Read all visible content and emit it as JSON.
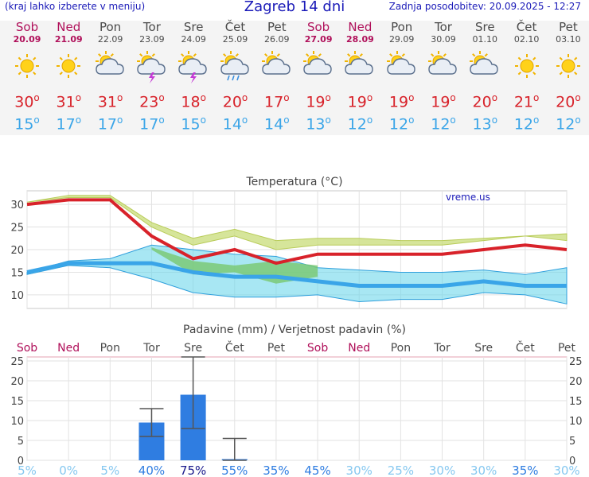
{
  "header": {
    "left_note": "(kraj lahko izberete v meniju)",
    "title": "Zagreb 14 dni",
    "updated": "Zadnja posodobitev: 20.09.2025 - 12:27"
  },
  "colors": {
    "max": "#d8222a",
    "min": "#3aa5e8",
    "weekend": "#b0105a",
    "weekday": "#4a4a4a",
    "bar": "#2f7de1"
  },
  "days": [
    {
      "name": "Sob",
      "date": "20.09",
      "weekend": true,
      "icon": "sun-icon",
      "max": "30",
      "min": "15"
    },
    {
      "name": "Ned",
      "date": "21.09",
      "weekend": true,
      "icon": "sun-icon",
      "max": "31",
      "min": "17"
    },
    {
      "name": "Pon",
      "date": "22.09",
      "weekend": false,
      "icon": "sun-cloud-icon",
      "max": "31",
      "min": "17"
    },
    {
      "name": "Tor",
      "date": "23.09",
      "weekend": false,
      "icon": "sun-storm-icon",
      "max": "23",
      "min": "17"
    },
    {
      "name": "Sre",
      "date": "24.09",
      "weekend": false,
      "icon": "sun-storm-icon",
      "max": "18",
      "min": "15"
    },
    {
      "name": "Čet",
      "date": "25.09",
      "weekend": false,
      "icon": "sun-rain-icon",
      "max": "20",
      "min": "14"
    },
    {
      "name": "Pet",
      "date": "26.09",
      "weekend": false,
      "icon": "sun-cloud-icon",
      "max": "17",
      "min": "14"
    },
    {
      "name": "Sob",
      "date": "27.09",
      "weekend": true,
      "icon": "sun-cloud-icon",
      "max": "19",
      "min": "13"
    },
    {
      "name": "Ned",
      "date": "28.09",
      "weekend": true,
      "icon": "sun-cloud-icon",
      "max": "19",
      "min": "12"
    },
    {
      "name": "Pon",
      "date": "29.09",
      "weekend": false,
      "icon": "sun-cloud-icon",
      "max": "19",
      "min": "12"
    },
    {
      "name": "Tor",
      "date": "30.09",
      "weekend": false,
      "icon": "sun-cloud-icon",
      "max": "19",
      "min": "12"
    },
    {
      "name": "Sre",
      "date": "01.10",
      "weekend": false,
      "icon": "sun-cloud-icon",
      "max": "20",
      "min": "13"
    },
    {
      "name": "Čet",
      "date": "02.10",
      "weekend": false,
      "icon": "sun-icon",
      "max": "21",
      "min": "12"
    },
    {
      "name": "Pet",
      "date": "03.10",
      "weekend": false,
      "icon": "sun-icon",
      "max": "20",
      "min": "12"
    }
  ],
  "chart_data": [
    {
      "type": "line",
      "title": "Temperatura (°C)",
      "watermark": "vreme.us",
      "ylim": [
        7,
        33
      ],
      "yticks": [
        10,
        15,
        20,
        25,
        30
      ],
      "grid": true,
      "x": [
        0,
        1,
        2,
        3,
        4,
        5,
        6,
        7,
        8,
        9,
        10,
        11,
        12,
        13
      ],
      "series": [
        {
          "values": [
            30,
            31,
            31,
            23,
            18,
            20,
            17,
            19,
            19,
            19,
            19,
            20,
            21,
            20
          ],
          "band_low": [
            30.5,
            31.5,
            31.5,
            25,
            21,
            23,
            20,
            21,
            21,
            21,
            21,
            22,
            23,
            22
          ],
          "band_high": [
            30.5,
            32,
            32,
            26,
            22.5,
            24.5,
            22,
            22.5,
            22.5,
            22,
            22,
            22.5,
            23,
            23.5
          ]
        },
        {
          "values": [
            15,
            17,
            17,
            17,
            15,
            14,
            14,
            13,
            12,
            12,
            12,
            13,
            12,
            12
          ],
          "band_low": [
            15,
            17.5,
            18,
            21,
            20,
            19,
            18.5,
            16,
            15.5,
            15,
            15,
            15.5,
            14.5,
            16
          ],
          "band_high": [
            14.5,
            16.5,
            16,
            13.5,
            10.5,
            9.5,
            9.5,
            10,
            8.5,
            9,
            9,
            10.5,
            10,
            8
          ]
        }
      ],
      "green_band": {
        "upper": [
          null,
          null,
          null,
          20.5,
          17.5,
          16.5,
          17.5,
          16.5,
          null
        ],
        "lower": [
          null,
          null,
          null,
          20,
          14.5,
          15,
          12.5,
          14,
          null
        ]
      }
    },
    {
      "type": "bar",
      "title": "Padavine (mm) / Verjetnost padavin (%)",
      "categories": [
        "Sob",
        "Ned",
        "Pon",
        "Tor",
        "Sre",
        "Čet",
        "Pet",
        "Sob",
        "Ned",
        "Pon",
        "Tor",
        "Sre",
        "Čet",
        "Pet"
      ],
      "weekend": [
        true,
        true,
        false,
        false,
        false,
        false,
        false,
        true,
        true,
        false,
        false,
        false,
        false,
        false
      ],
      "values": [
        0,
        0,
        0,
        9.5,
        16.5,
        0.3,
        0,
        0,
        0,
        0,
        0,
        0,
        0,
        0
      ],
      "error_low": [
        null,
        null,
        null,
        6,
        8,
        0,
        null,
        null,
        null,
        null,
        null,
        null,
        null,
        null
      ],
      "error_high": [
        null,
        null,
        null,
        13,
        26,
        5.5,
        null,
        null,
        null,
        null,
        null,
        null,
        null,
        null
      ],
      "probability": [
        "5%",
        "0%",
        "5%",
        "40%",
        "75%",
        "55%",
        "35%",
        "45%",
        "30%",
        "25%",
        "30%",
        "30%",
        "35%",
        "30%"
      ],
      "ylim": [
        0,
        26
      ],
      "yticks": [
        0,
        5,
        10,
        15,
        20,
        25
      ],
      "grid": true
    }
  ]
}
